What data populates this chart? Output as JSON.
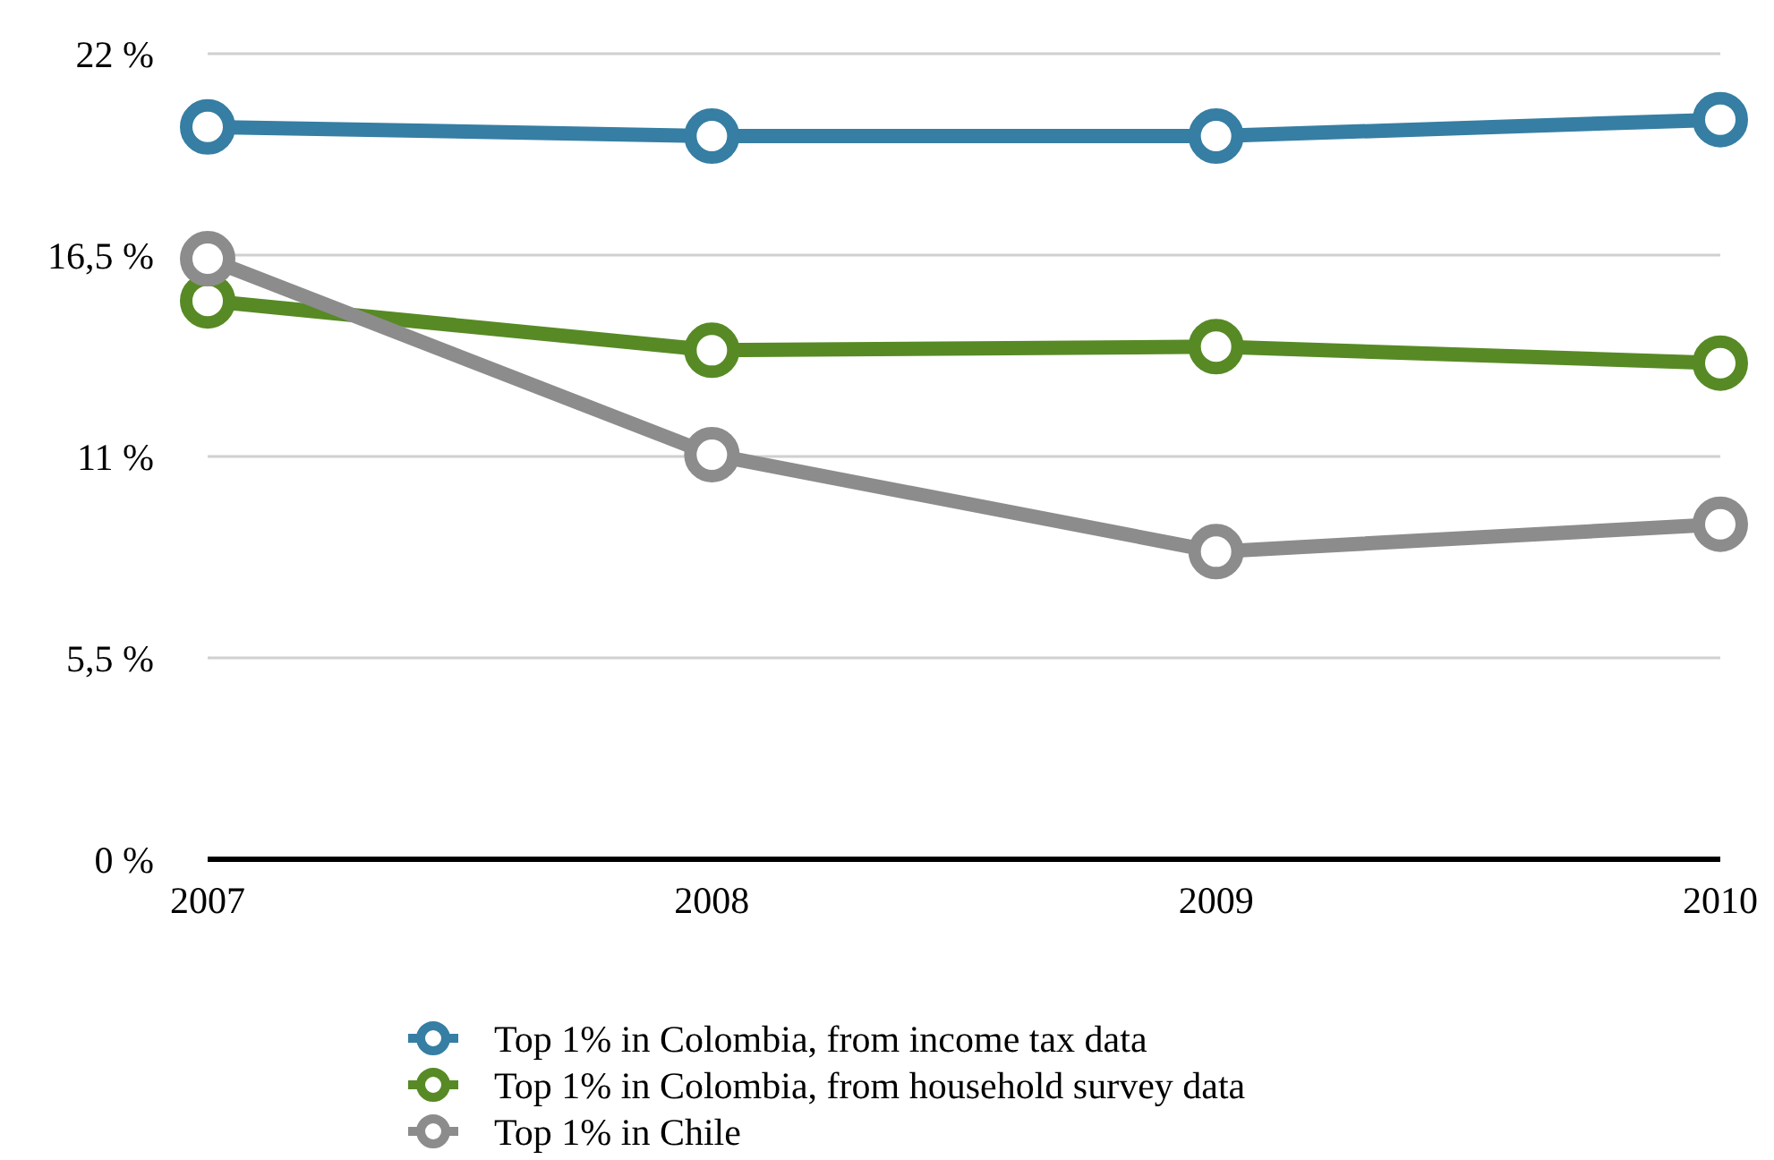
{
  "chart_data": {
    "type": "line",
    "categories": [
      "2007",
      "2008",
      "2009",
      "2010"
    ],
    "series": [
      {
        "name": "Top 1% in Colombia, from income tax data",
        "color": "#367ea3",
        "values": [
          20.0,
          19.75,
          19.75,
          20.2
        ]
      },
      {
        "name": "Top 1% in Colombia, from household survey data",
        "color": "#578a25",
        "values": [
          15.25,
          13.9,
          14.0,
          13.55
        ]
      },
      {
        "name": "Top 1% in Chile",
        "color": "#8c8c8c",
        "values": [
          16.4,
          11.05,
          8.4,
          9.15
        ]
      }
    ],
    "ylim": [
      0,
      22
    ],
    "yticks": [
      {
        "value": 0,
        "label": "0 %"
      },
      {
        "value": 5.5,
        "label": "5,5 %"
      },
      {
        "value": 11,
        "label": "11 %"
      },
      {
        "value": 16.5,
        "label": "16,5 %"
      },
      {
        "value": 22,
        "label": "22 %"
      }
    ],
    "grid": "y",
    "legend": "bottom",
    "marker": "circle",
    "line_style": "solid"
  }
}
